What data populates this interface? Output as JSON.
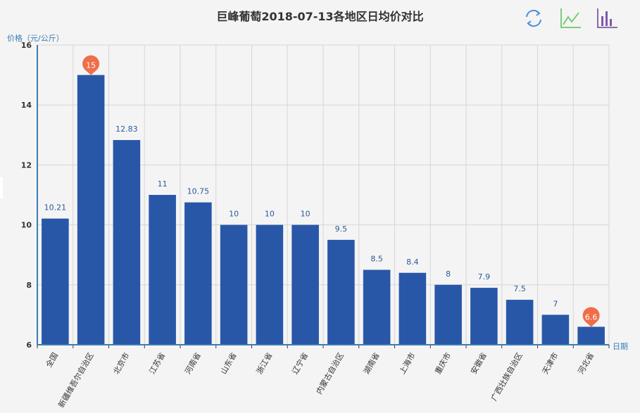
{
  "title": "巨峰葡萄2018-07-13各地区日均价对比",
  "toolbox": {
    "items": [
      {
        "name": "restore",
        "icon": "refresh-icon",
        "color": "#4a90d9"
      },
      {
        "name": "line",
        "icon": "line-chart-icon",
        "color": "#6bc96b"
      },
      {
        "name": "bar",
        "icon": "bar-chart-icon",
        "color": "#7e5aa6"
      }
    ]
  },
  "axis": {
    "y_name": "价格（元/公斤）",
    "x_name": "日期"
  },
  "colors": {
    "bar": "#2957a8",
    "marker": "#f06d4a",
    "axis": "#3a7db4",
    "grid": "#d6d6d6"
  },
  "chart_data": {
    "type": "bar",
    "title": "巨峰葡萄2018-07-13各地区日均价对比",
    "xlabel": "日期",
    "ylabel": "价格（元/公斤）",
    "ylim": [
      6,
      16
    ],
    "yticks": [
      6,
      8,
      10,
      12,
      14,
      16
    ],
    "grid": true,
    "categories": [
      "全国",
      "新疆维吾尔自治区",
      "北京市",
      "江苏省",
      "河南省",
      "山东省",
      "浙江省",
      "辽宁省",
      "内蒙古自治区",
      "湖南省",
      "上海市",
      "重庆市",
      "安徽省",
      "广西壮族自治区",
      "天津市",
      "河北省"
    ],
    "values": [
      10.21,
      15,
      12.83,
      11,
      10.75,
      10,
      10,
      10,
      9.5,
      8.5,
      8.4,
      8,
      7.9,
      7.5,
      7,
      6.6
    ],
    "labels": [
      "10.21",
      "15",
      "12.83",
      "11",
      "10.75",
      "10",
      "10",
      "10",
      "9.5",
      "8.5",
      "8.4",
      "8",
      "7.9",
      "7.5",
      "7",
      "6.6"
    ],
    "mark_points": [
      {
        "type": "max",
        "category": "新疆维吾尔自治区",
        "value": 15,
        "label": "15"
      },
      {
        "type": "min",
        "category": "河北省",
        "value": 6.6,
        "label": "6.6"
      }
    ]
  }
}
